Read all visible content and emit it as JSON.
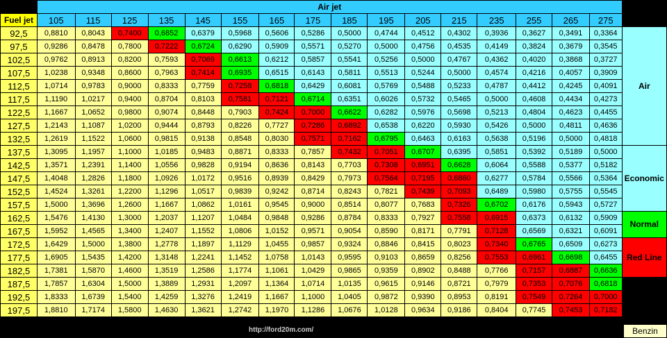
{
  "header": {
    "fuel_jet_label": "Fuel jet",
    "air_jet_label": "Air jet"
  },
  "air_jets": [
    "105",
    "115",
    "125",
    "135",
    "145",
    "155",
    "165",
    "175",
    "185",
    "195",
    "205",
    "215",
    "235",
    "255",
    "265",
    "275"
  ],
  "rows": [
    {
      "fuel": "92,5",
      "values": [
        "0,8810",
        "0,8043",
        "0,7400",
        "0,6852",
        "0,6379",
        "0,5968",
        "0,5606",
        "0,5286",
        "0,5000",
        "0,4744",
        "0,4512",
        "0,4302",
        "0,3936",
        "0,3627",
        "0,3491",
        "0,3364"
      ],
      "colors": "YYRGCCCCCCCCCCCC"
    },
    {
      "fuel": "97,5",
      "values": [
        "0,9286",
        "0,8478",
        "0,7800",
        "0,7222",
        "0,6724",
        "0,6290",
        "0,5909",
        "0,5571",
        "0,5270",
        "0,5000",
        "0,4756",
        "0,4535",
        "0,4149",
        "0,3824",
        "0,3679",
        "0,3545"
      ],
      "colors": "YYYRGCCCCCCCCCCC"
    },
    {
      "fuel": "102,5",
      "values": [
        "0,9762",
        "0,8913",
        "0,8200",
        "0,7593",
        "0,7069",
        "0,6613",
        "0,6212",
        "0,5857",
        "0,5541",
        "0,5256",
        "0,5000",
        "0,4767",
        "0,4362",
        "0,4020",
        "0,3868",
        "0,3727"
      ],
      "colors": "YYYYRGCCCCCCCCCC"
    },
    {
      "fuel": "107,5",
      "values": [
        "1,0238",
        "0,9348",
        "0,8600",
        "0,7963",
        "0,7414",
        "0,6935",
        "0,6515",
        "0,6143",
        "0,5811",
        "0,5513",
        "0,5244",
        "0,5000",
        "0,4574",
        "0,4216",
        "0,4057",
        "0,3909"
      ],
      "colors": "YYYYRGCCCCCCCCCC"
    },
    {
      "fuel": "112,5",
      "values": [
        "1,0714",
        "0,9783",
        "0,9000",
        "0,8333",
        "0,7759",
        "0,7258",
        "0,6818",
        "0,6429",
        "0,6081",
        "0,5769",
        "0,5488",
        "0,5233",
        "0,4787",
        "0,4412",
        "0,4245",
        "0,4091"
      ],
      "colors": "YYYYYRGCCCCCCCCC"
    },
    {
      "fuel": "117,5",
      "values": [
        "1,1190",
        "1,0217",
        "0,9400",
        "0,8704",
        "0,8103",
        "0,7581",
        "0,7121",
        "0,6714",
        "0,6351",
        "0,6026",
        "0,5732",
        "0,5465",
        "0,5000",
        "0,4608",
        "0,4434",
        "0,4273"
      ],
      "colors": "YYYYYRRGCCCCCCCC"
    },
    {
      "fuel": "122,5",
      "values": [
        "1,1667",
        "1,0652",
        "0,9800",
        "0,9074",
        "0,8448",
        "0,7903",
        "0,7424",
        "0,7000",
        "0,6622",
        "0,6282",
        "0,5976",
        "0,5698",
        "0,5213",
        "0,4804",
        "0,4623",
        "0,4455"
      ],
      "colors": "YYYYYYRRGCCCCCCC"
    },
    {
      "fuel": "127,5",
      "values": [
        "1,2143",
        "1,1087",
        "1,0200",
        "0,9444",
        "0,8793",
        "0,8226",
        "0,7727",
        "0,7286",
        "0,6892",
        "0,6538",
        "0,6220",
        "0,5930",
        "0,5426",
        "0,5000",
        "0,4811",
        "0,4636"
      ],
      "colors": "YYYYYYYRRCCCCCCC"
    },
    {
      "fuel": "132,5",
      "values": [
        "1,2619",
        "1,1522",
        "1,0600",
        "0,9815",
        "0,9138",
        "0,8548",
        "0,8030",
        "0,7571",
        "0,7162",
        "0,6795",
        "0,6463",
        "0,6163",
        "0,5638",
        "0,5196",
        "0,5000",
        "0,4818"
      ],
      "colors": "YYYYYYYRRGCCCCCC"
    },
    {
      "fuel": "137,5",
      "values": [
        "1,3095",
        "1,1957",
        "1,1000",
        "1,0185",
        "0,9483",
        "0,8871",
        "0,8333",
        "0,7857",
        "0,7432",
        "0,7051",
        "0,6707",
        "0,6395",
        "0,5851",
        "0,5392",
        "0,5189",
        "0,5000"
      ],
      "colors": "YYYYYYYYRRGCCCCC"
    },
    {
      "fuel": "142,5",
      "values": [
        "1,3571",
        "1,2391",
        "1,1400",
        "1,0556",
        "0,9828",
        "0,9194",
        "0,8636",
        "0,8143",
        "0,7703",
        "0,7308",
        "0,6951",
        "0,6628",
        "0,6064",
        "0,5588",
        "0,5377",
        "0,5182"
      ],
      "colors": "YYYYYYYYYRRGCCCC"
    },
    {
      "fuel": "147,5",
      "values": [
        "1,4048",
        "1,2826",
        "1,1800",
        "1,0926",
        "1,0172",
        "0,9516",
        "0,8939",
        "0,8429",
        "0,7973",
        "0,7564",
        "0,7195",
        "0,6860",
        "0,6277",
        "0,5784",
        "0,5566",
        "0,5364"
      ],
      "colors": "YYYYYYYYYRRRCCCC"
    },
    {
      "fuel": "152,5",
      "values": [
        "1,4524",
        "1,3261",
        "1,2200",
        "1,1296",
        "1,0517",
        "0,9839",
        "0,9242",
        "0,8714",
        "0,8243",
        "0,7821",
        "0,7439",
        "0,7093",
        "0,6489",
        "0,5980",
        "0,5755",
        "0,5545"
      ],
      "colors": "YYYYYYYYYYRRCCCC"
    },
    {
      "fuel": "157,5",
      "values": [
        "1,5000",
        "1,3696",
        "1,2600",
        "1,1667",
        "1,0862",
        "1,0161",
        "0,9545",
        "0,9000",
        "0,8514",
        "0,8077",
        "0,7683",
        "0,7326",
        "0,6702",
        "0,6176",
        "0,5943",
        "0,5727"
      ],
      "colors": "YYYYYYYYYYYRGCCC"
    },
    {
      "fuel": "162,5",
      "values": [
        "1,5476",
        "1,4130",
        "1,3000",
        "1,2037",
        "1,1207",
        "1,0484",
        "0,9848",
        "0,9286",
        "0,8784",
        "0,8333",
        "0,7927",
        "0,7558",
        "0,6915",
        "0,6373",
        "0,6132",
        "0,5909"
      ],
      "colors": "YYYYYYYYYYYRRCCC"
    },
    {
      "fuel": "167,5",
      "values": [
        "1,5952",
        "1,4565",
        "1,3400",
        "1,2407",
        "1,1552",
        "1,0806",
        "1,0152",
        "0,9571",
        "0,9054",
        "0,8590",
        "0,8171",
        "0,7791",
        "0,7128",
        "0,6569",
        "0,6321",
        "0,6091"
      ],
      "colors": "YYYYYYYYYYYYRCCC"
    },
    {
      "fuel": "172,5",
      "values": [
        "1,6429",
        "1,5000",
        "1,3800",
        "1,2778",
        "1,1897",
        "1,1129",
        "1,0455",
        "0,9857",
        "0,9324",
        "0,8846",
        "0,8415",
        "0,8023",
        "0,7340",
        "0,6765",
        "0,6509",
        "0,6273"
      ],
      "colors": "YYYYYYYYYYYYRGCC"
    },
    {
      "fuel": "177,5",
      "values": [
        "1,6905",
        "1,5435",
        "1,4200",
        "1,3148",
        "1,2241",
        "1,1452",
        "1,0758",
        "1,0143",
        "0,9595",
        "0,9103",
        "0,8659",
        "0,8256",
        "0,7553",
        "0,6961",
        "0,6698",
        "0,6455"
      ],
      "colors": "YYYYYYYYYYYYRRGC"
    },
    {
      "fuel": "182,5",
      "values": [
        "1,7381",
        "1,5870",
        "1,4600",
        "1,3519",
        "1,2586",
        "1,1774",
        "1,1061",
        "1,0429",
        "0,9865",
        "0,9359",
        "0,8902",
        "0,8488",
        "0,7766",
        "0,7157",
        "0,6887",
        "0,6636"
      ],
      "colors": "YYYYYYYYYYYYYRRG"
    },
    {
      "fuel": "187,5",
      "values": [
        "1,7857",
        "1,6304",
        "1,5000",
        "1,3889",
        "1,2931",
        "1,2097",
        "1,1364",
        "1,0714",
        "1,0135",
        "0,9615",
        "0,9146",
        "0,8721",
        "0,7979",
        "0,7353",
        "0,7076",
        "0,6818"
      ],
      "colors": "YYYYYYYYYYYYYRRG"
    },
    {
      "fuel": "192,5",
      "values": [
        "1,8333",
        "1,6739",
        "1,5400",
        "1,4259",
        "1,3276",
        "1,2419",
        "1,1667",
        "1,1000",
        "1,0405",
        "0,9872",
        "0,9390",
        "0,8953",
        "0,8191",
        "0,7549",
        "0,7264",
        "0,7000"
      ],
      "colors": "YYYYYYYYYYYYYRRR"
    },
    {
      "fuel": "197,5",
      "values": [
        "1,8810",
        "1,7174",
        "1,5800",
        "1,4630",
        "1,3621",
        "1,2742",
        "1,1970",
        "1,1286",
        "1,0676",
        "1,0128",
        "0,9634",
        "0,9186",
        "0,8404",
        "0,7745",
        "0,7453",
        "0,7182"
      ],
      "colors": "YYYYYYYYYYYYYYRR"
    }
  ],
  "legend": [
    {
      "label": "Air",
      "rows": 9,
      "color": "#99ffff"
    },
    {
      "label": "Economic",
      "rows": 5,
      "color": "#99ffff"
    },
    {
      "label": "Normal",
      "rows": 2,
      "color": "#00ff00"
    },
    {
      "label": "Red Line",
      "rows": 3,
      "color": "#ff0000"
    }
  ],
  "footer": {
    "url": "http://ford20m.com/",
    "benzin": "Benzin"
  }
}
